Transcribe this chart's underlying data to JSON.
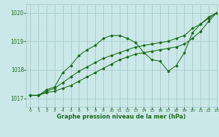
{
  "title": "Graphe pression niveau de la mer (hPa)",
  "background_color": "#cbe8e8",
  "grid_color": "#aacccc",
  "line_color": "#1a6b1a",
  "xlim": [
    -0.5,
    23
  ],
  "ylim": [
    1016.7,
    1020.3
  ],
  "yticks": [
    1017,
    1018,
    1019,
    1020
  ],
  "xticks": [
    0,
    1,
    2,
    3,
    4,
    5,
    6,
    7,
    8,
    9,
    10,
    11,
    12,
    13,
    14,
    15,
    16,
    17,
    18,
    19,
    20,
    21,
    22,
    23
  ],
  "series": [
    [
      1017.1,
      1017.1,
      1017.3,
      1017.4,
      1017.9,
      1018.15,
      1018.5,
      1018.7,
      1018.85,
      1019.1,
      1019.2,
      1019.2,
      1019.1,
      1018.95,
      1018.6,
      1018.35,
      1018.3,
      1017.95,
      1018.15,
      1018.6,
      1019.3,
      1019.6,
      1019.85,
      1020.0
    ],
    [
      1017.1,
      1017.1,
      1017.25,
      1017.35,
      1017.55,
      1017.75,
      1017.95,
      1018.1,
      1018.25,
      1018.4,
      1018.5,
      1018.6,
      1018.7,
      1018.8,
      1018.85,
      1018.9,
      1018.95,
      1019.0,
      1019.1,
      1019.2,
      1019.45,
      1019.6,
      1019.8,
      1020.0
    ],
    [
      1017.1,
      1017.1,
      1017.2,
      1017.25,
      1017.35,
      1017.45,
      1017.6,
      1017.75,
      1017.9,
      1018.05,
      1018.2,
      1018.35,
      1018.45,
      1018.55,
      1018.6,
      1018.65,
      1018.7,
      1018.75,
      1018.8,
      1018.9,
      1019.1,
      1019.35,
      1019.7,
      1020.0
    ]
  ],
  "xlabel_fontsize": 6.0,
  "ytick_fontsize": 5.5,
  "xtick_fontsize": 4.5
}
